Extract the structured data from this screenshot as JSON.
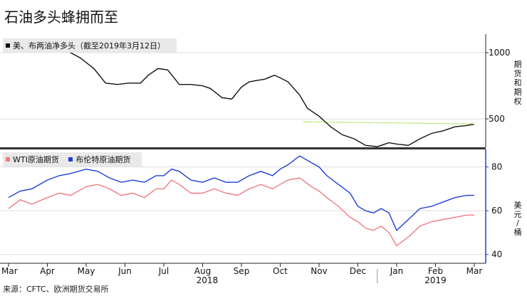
{
  "title": "石油多头蜂拥而至",
  "source": "来源：CFTC、欧洲期货交易所",
  "top_panel": {
    "legend": "美、布两油净多头（截至2019年3月12日）",
    "ylabel": "期货和期权"
  },
  "bottom_panel": {
    "legend_wti": "WTI原油期货",
    "legend_brent": "布伦特原油期货",
    "ylabel": "美元/桶"
  },
  "colors": {
    "net_long": "#111111",
    "threshold": "#9ad92a",
    "wti": "#f07a80",
    "brent": "#1f3fd6",
    "grid": "#dddddd"
  },
  "chart_data": [
    {
      "type": "line",
      "title": "",
      "ylabel": "期货和期权",
      "ylim": [
        280,
        1140
      ],
      "yticks": [
        500,
        1000
      ],
      "x_categories": [
        "Mar",
        "Apr",
        "May",
        "Jun",
        "Jul",
        "Aug",
        "Sep",
        "Oct",
        "Nov",
        "Dec",
        "Jan",
        "Feb",
        "Mar"
      ],
      "x_year_labels": [
        "2018",
        "2019"
      ],
      "series": [
        {
          "name": "美、布两油净多头（截至2019年3月12日）",
          "x": [
            0,
            0.2,
            0.5,
            0.75,
            1.0,
            1.3,
            1.6,
            1.85,
            2.2,
            2.5,
            2.8,
            3.1,
            3.4,
            3.6,
            3.85,
            4.1,
            4.4,
            4.7,
            5.0,
            5.2,
            5.5,
            5.75,
            6.0,
            6.2,
            6.4,
            6.6,
            6.85,
            7.0,
            7.2,
            7.5,
            7.7,
            8.0,
            8.3,
            8.6,
            8.9,
            9.2,
            9.5,
            9.8,
            10.0,
            10.3,
            10.6,
            10.9,
            11.2,
            11.5,
            11.8,
            12.0
          ],
          "values": [
            1030,
            1080,
            1035,
            1050,
            1060,
            1040,
            1000,
            960,
            880,
            770,
            760,
            770,
            770,
            830,
            880,
            870,
            760,
            760,
            750,
            730,
            660,
            650,
            740,
            780,
            790,
            800,
            830,
            810,
            780,
            680,
            580,
            520,
            440,
            380,
            350,
            300,
            290,
            320,
            310,
            300,
            350,
            390,
            410,
            440,
            450,
            460
          ]
        },
        {
          "name": "",
          "type": "threshold",
          "x": [
            7.6,
            12.0
          ],
          "values": [
            478,
            462
          ]
        }
      ]
    },
    {
      "type": "line",
      "title": "",
      "ylabel": "美元/桶",
      "ylim": [
        36,
        88
      ],
      "yticks": [
        40,
        60,
        80
      ],
      "x_categories": [
        "Mar",
        "Apr",
        "May",
        "Jun",
        "Jul",
        "Aug",
        "Sep",
        "Oct",
        "Nov",
        "Dec",
        "Jan",
        "Feb",
        "Mar"
      ],
      "series": [
        {
          "name": "WTI原油期货",
          "x": [
            0,
            0.3,
            0.6,
            1.0,
            1.3,
            1.6,
            2.0,
            2.3,
            2.6,
            2.9,
            3.2,
            3.5,
            3.8,
            4.0,
            4.2,
            4.4,
            4.7,
            5.0,
            5.3,
            5.6,
            5.9,
            6.2,
            6.5,
            6.8,
            7.0,
            7.2,
            7.5,
            7.8,
            8.0,
            8.2,
            8.5,
            8.8,
            9.0,
            9.2,
            9.4,
            9.6,
            9.8,
            10.0,
            10.3,
            10.6,
            10.9,
            11.2,
            11.5,
            11.8,
            12.0
          ],
          "values": [
            61,
            65,
            63,
            66,
            68,
            67,
            71,
            72,
            70,
            67,
            68,
            66,
            70,
            70,
            74,
            72,
            68,
            68,
            70,
            68,
            67,
            70,
            72,
            70,
            72,
            74,
            75,
            71,
            69,
            66,
            62,
            57,
            55,
            52,
            51,
            53,
            50,
            44,
            48,
            53,
            55,
            56,
            57,
            58,
            58
          ]
        },
        {
          "name": "布伦特原油期货",
          "x": [
            0,
            0.3,
            0.6,
            1.0,
            1.3,
            1.6,
            2.0,
            2.3,
            2.6,
            2.9,
            3.2,
            3.5,
            3.8,
            4.0,
            4.2,
            4.4,
            4.7,
            5.0,
            5.3,
            5.6,
            5.9,
            6.2,
            6.5,
            6.8,
            7.0,
            7.2,
            7.5,
            7.8,
            8.0,
            8.2,
            8.5,
            8.8,
            9.0,
            9.2,
            9.4,
            9.6,
            9.8,
            10.0,
            10.3,
            10.6,
            10.9,
            11.2,
            11.5,
            11.8,
            12.0
          ],
          "values": [
            66,
            69,
            70,
            74,
            76,
            77,
            79,
            78,
            75,
            73,
            74,
            73,
            76,
            76,
            79,
            78,
            74,
            73,
            75,
            73,
            73,
            76,
            78,
            76,
            79,
            81,
            85,
            82,
            80,
            76,
            72,
            68,
            62,
            60,
            59,
            61,
            59,
            51,
            56,
            61,
            62,
            64,
            66,
            67,
            67
          ]
        }
      ]
    }
  ]
}
